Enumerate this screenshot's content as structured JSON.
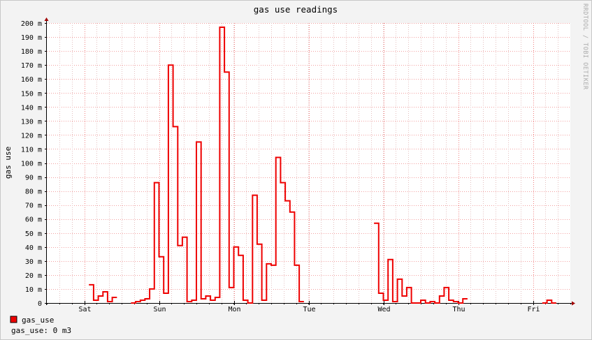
{
  "chart_data": {
    "type": "line",
    "title": "gas use readings",
    "ylabel": "gas use",
    "watermark": "RRDTOOL / TOBI OETIKER",
    "ylim": [
      0,
      200
    ],
    "ytick_step": 10,
    "ytick_labels": [
      "0",
      "10 m",
      "20 m",
      "30 m",
      "40 m",
      "50 m",
      "60 m",
      "70 m",
      "80 m",
      "90 m",
      "100 m",
      "110 m",
      "120 m",
      "130 m",
      "140 m",
      "150 m",
      "160 m",
      "170 m",
      "180 m",
      "190 m",
      "200 m"
    ],
    "xlim": [
      0,
      7
    ],
    "x_units": "days from start of plotted window",
    "x_day_labels": [
      {
        "label": "Sat",
        "x": 0.5
      },
      {
        "label": "Sun",
        "x": 1.5
      },
      {
        "label": "Mon",
        "x": 2.5
      },
      {
        "label": "Tue",
        "x": 3.5
      },
      {
        "label": "Wed",
        "x": 4.5
      },
      {
        "label": "Thu",
        "x": 5.5
      },
      {
        "label": "Fri",
        "x": 6.5
      }
    ],
    "grid": true,
    "step_width_days": 0.0625,
    "series": [
      {
        "name": "gas_use",
        "color": "#ee0000",
        "segments": [
          {
            "start": 0.5625,
            "values": [
              13,
              2,
              5,
              8,
              1,
              4
            ]
          },
          {
            "start": 1.125,
            "values": [
              0,
              1,
              2,
              3,
              10,
              86,
              33,
              7,
              170,
              126,
              41,
              47,
              1,
              2,
              115,
              3,
              5,
              2,
              4,
              197,
              165,
              11,
              40,
              34,
              2,
              0,
              77,
              42,
              2,
              28,
              27,
              104,
              86,
              73,
              65,
              27,
              1
            ]
          },
          {
            "start": 4.375,
            "values": [
              57,
              7,
              2,
              31,
              1,
              17,
              5,
              11,
              0,
              0,
              2,
              0,
              1,
              0,
              5,
              11,
              2,
              1,
              0,
              3
            ]
          },
          {
            "start": 6.625,
            "values": [
              0,
              2,
              0
            ]
          }
        ]
      }
    ],
    "legend": {
      "placement": "bottom-left",
      "entries": [
        {
          "name": "gas_use",
          "color": "#ee0000"
        }
      ]
    },
    "summary": "gas_use: 0 m3"
  }
}
